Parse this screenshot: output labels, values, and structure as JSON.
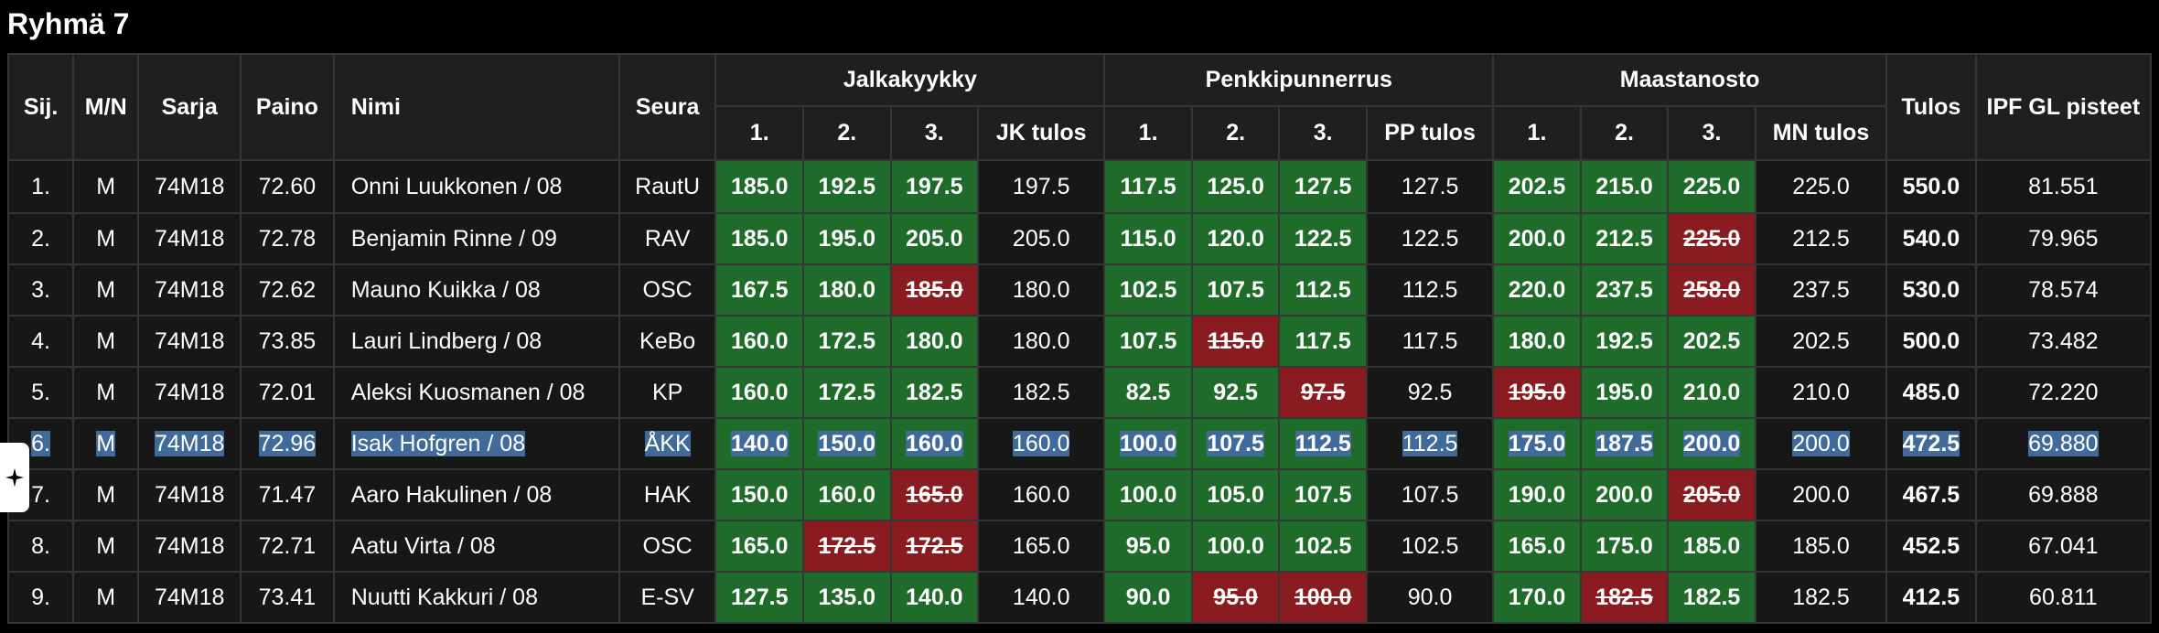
{
  "page": {
    "title": "Ryhmä 7"
  },
  "table": {
    "headers": {
      "place": "Sij.",
      "gender": "M/N",
      "series": "Sarja",
      "weight": "Paino",
      "name": "Nimi",
      "club": "Seura",
      "squat_group": "Jalkakyykky",
      "bench_group": "Penkkipunnerrus",
      "deadlift_group": "Maastanosto",
      "total": "Tulos",
      "points": "IPF GL pisteet",
      "att1": "1.",
      "att2": "2.",
      "att3": "3.",
      "squat_result": "JK tulos",
      "bench_result": "PP tulos",
      "deadlift_result": "MN tulos"
    },
    "rows": [
      {
        "place": "1.",
        "gender": "M",
        "series": "74M18",
        "weight": "72.60",
        "name": "Onni Luukkonen / 08",
        "club": "RautU",
        "squat": [
          {
            "v": "185.0",
            "s": "good"
          },
          {
            "v": "192.5",
            "s": "good"
          },
          {
            "v": "197.5",
            "s": "good"
          }
        ],
        "squat_result": "197.5",
        "bench": [
          {
            "v": "117.5",
            "s": "good"
          },
          {
            "v": "125.0",
            "s": "good"
          },
          {
            "v": "127.5",
            "s": "good"
          }
        ],
        "bench_result": "127.5",
        "deadlift": [
          {
            "v": "202.5",
            "s": "good"
          },
          {
            "v": "215.0",
            "s": "good"
          },
          {
            "v": "225.0",
            "s": "good"
          }
        ],
        "deadlift_result": "225.0",
        "total": "550.0",
        "points": "81.551"
      },
      {
        "place": "2.",
        "gender": "M",
        "series": "74M18",
        "weight": "72.78",
        "name": "Benjamin Rinne / 09",
        "club": "RAV",
        "squat": [
          {
            "v": "185.0",
            "s": "good"
          },
          {
            "v": "195.0",
            "s": "good"
          },
          {
            "v": "205.0",
            "s": "good"
          }
        ],
        "squat_result": "205.0",
        "bench": [
          {
            "v": "115.0",
            "s": "good"
          },
          {
            "v": "120.0",
            "s": "good"
          },
          {
            "v": "122.5",
            "s": "good"
          }
        ],
        "bench_result": "122.5",
        "deadlift": [
          {
            "v": "200.0",
            "s": "good"
          },
          {
            "v": "212.5",
            "s": "good"
          },
          {
            "v": "225.0",
            "s": "bad"
          }
        ],
        "deadlift_result": "212.5",
        "total": "540.0",
        "points": "79.965"
      },
      {
        "place": "3.",
        "gender": "M",
        "series": "74M18",
        "weight": "72.62",
        "name": "Mauno Kuikka / 08",
        "club": "OSC",
        "squat": [
          {
            "v": "167.5",
            "s": "good"
          },
          {
            "v": "180.0",
            "s": "good"
          },
          {
            "v": "185.0",
            "s": "bad"
          }
        ],
        "squat_result": "180.0",
        "bench": [
          {
            "v": "102.5",
            "s": "good"
          },
          {
            "v": "107.5",
            "s": "good"
          },
          {
            "v": "112.5",
            "s": "good"
          }
        ],
        "bench_result": "112.5",
        "deadlift": [
          {
            "v": "220.0",
            "s": "good"
          },
          {
            "v": "237.5",
            "s": "good"
          },
          {
            "v": "258.0",
            "s": "bad"
          }
        ],
        "deadlift_result": "237.5",
        "total": "530.0",
        "points": "78.574"
      },
      {
        "place": "4.",
        "gender": "M",
        "series": "74M18",
        "weight": "73.85",
        "name": "Lauri Lindberg / 08",
        "club": "KeBo",
        "squat": [
          {
            "v": "160.0",
            "s": "good"
          },
          {
            "v": "172.5",
            "s": "good"
          },
          {
            "v": "180.0",
            "s": "good"
          }
        ],
        "squat_result": "180.0",
        "bench": [
          {
            "v": "107.5",
            "s": "good"
          },
          {
            "v": "115.0",
            "s": "bad"
          },
          {
            "v": "117.5",
            "s": "good"
          }
        ],
        "bench_result": "117.5",
        "deadlift": [
          {
            "v": "180.0",
            "s": "good"
          },
          {
            "v": "192.5",
            "s": "good"
          },
          {
            "v": "202.5",
            "s": "good"
          }
        ],
        "deadlift_result": "202.5",
        "total": "500.0",
        "points": "73.482"
      },
      {
        "place": "5.",
        "gender": "M",
        "series": "74M18",
        "weight": "72.01",
        "name": "Aleksi Kuosmanen / 08",
        "club": "KP",
        "squat": [
          {
            "v": "160.0",
            "s": "good"
          },
          {
            "v": "172.5",
            "s": "good"
          },
          {
            "v": "182.5",
            "s": "good"
          }
        ],
        "squat_result": "182.5",
        "bench": [
          {
            "v": "82.5",
            "s": "good"
          },
          {
            "v": "92.5",
            "s": "good"
          },
          {
            "v": "97.5",
            "s": "bad"
          }
        ],
        "bench_result": "92.5",
        "deadlift": [
          {
            "v": "195.0",
            "s": "bad"
          },
          {
            "v": "195.0",
            "s": "good"
          },
          {
            "v": "210.0",
            "s": "good"
          }
        ],
        "deadlift_result": "210.0",
        "total": "485.0",
        "points": "72.220"
      },
      {
        "place": "6.",
        "gender": "M",
        "series": "74M18",
        "weight": "72.96",
        "name": "Isak Hofgren / 08",
        "club": "ÅKK",
        "squat": [
          {
            "v": "140.0",
            "s": "good"
          },
          {
            "v": "150.0",
            "s": "good"
          },
          {
            "v": "160.0",
            "s": "good"
          }
        ],
        "squat_result": "160.0",
        "bench": [
          {
            "v": "100.0",
            "s": "good"
          },
          {
            "v": "107.5",
            "s": "good"
          },
          {
            "v": "112.5",
            "s": "good"
          }
        ],
        "bench_result": "112.5",
        "deadlift": [
          {
            "v": "175.0",
            "s": "good"
          },
          {
            "v": "187.5",
            "s": "good"
          },
          {
            "v": "200.0",
            "s": "good"
          }
        ],
        "deadlift_result": "200.0",
        "total": "472.5",
        "points": "69.880",
        "selected": true
      },
      {
        "place": "7.",
        "gender": "M",
        "series": "74M18",
        "weight": "71.47",
        "name": "Aaro Hakulinen / 08",
        "club": "HAK",
        "squat": [
          {
            "v": "150.0",
            "s": "good"
          },
          {
            "v": "160.0",
            "s": "good"
          },
          {
            "v": "165.0",
            "s": "bad"
          }
        ],
        "squat_result": "160.0",
        "bench": [
          {
            "v": "100.0",
            "s": "good"
          },
          {
            "v": "105.0",
            "s": "good"
          },
          {
            "v": "107.5",
            "s": "good"
          }
        ],
        "bench_result": "107.5",
        "deadlift": [
          {
            "v": "190.0",
            "s": "good"
          },
          {
            "v": "200.0",
            "s": "good"
          },
          {
            "v": "205.0",
            "s": "bad"
          }
        ],
        "deadlift_result": "200.0",
        "total": "467.5",
        "points": "69.888"
      },
      {
        "place": "8.",
        "gender": "M",
        "series": "74M18",
        "weight": "72.71",
        "name": "Aatu Virta / 08",
        "club": "OSC",
        "squat": [
          {
            "v": "165.0",
            "s": "good"
          },
          {
            "v": "172.5",
            "s": "bad"
          },
          {
            "v": "172.5",
            "s": "bad"
          }
        ],
        "squat_result": "165.0",
        "bench": [
          {
            "v": "95.0",
            "s": "good"
          },
          {
            "v": "100.0",
            "s": "good"
          },
          {
            "v": "102.5",
            "s": "good"
          }
        ],
        "bench_result": "102.5",
        "deadlift": [
          {
            "v": "165.0",
            "s": "good"
          },
          {
            "v": "175.0",
            "s": "good"
          },
          {
            "v": "185.0",
            "s": "good"
          }
        ],
        "deadlift_result": "185.0",
        "total": "452.5",
        "points": "67.041"
      },
      {
        "place": "9.",
        "gender": "M",
        "series": "74M18",
        "weight": "73.41",
        "name": "Nuutti Kakkuri / 08",
        "club": "E-SV",
        "squat": [
          {
            "v": "127.5",
            "s": "good"
          },
          {
            "v": "135.0",
            "s": "good"
          },
          {
            "v": "140.0",
            "s": "good"
          }
        ],
        "squat_result": "140.0",
        "bench": [
          {
            "v": "90.0",
            "s": "good"
          },
          {
            "v": "95.0",
            "s": "bad"
          },
          {
            "v": "100.0",
            "s": "bad"
          }
        ],
        "bench_result": "90.0",
        "deadlift": [
          {
            "v": "170.0",
            "s": "good"
          },
          {
            "v": "182.5",
            "s": "bad"
          },
          {
            "v": "182.5",
            "s": "good"
          }
        ],
        "deadlift_result": "182.5",
        "total": "412.5",
        "points": "60.811"
      }
    ]
  },
  "colors": {
    "good_attempt": "#1f6b29",
    "failed_attempt": "#8a1c21",
    "selection": "#3f6a9a"
  },
  "icons": {
    "side_tab": "sparkle-icon"
  }
}
